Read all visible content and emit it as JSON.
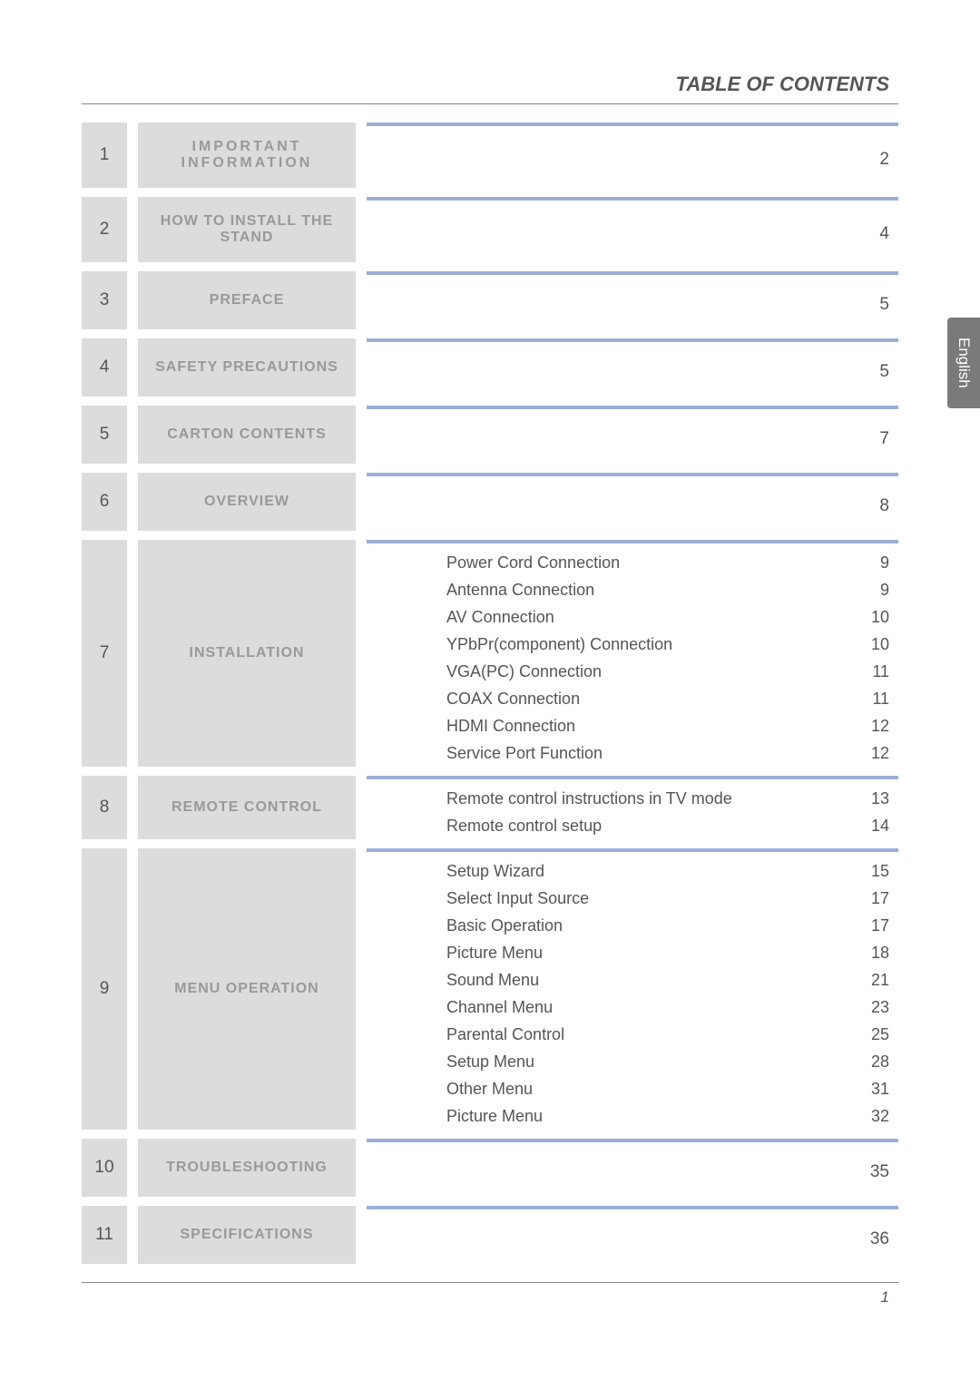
{
  "header": {
    "title": "TABLE OF CONTENTS",
    "language_tab": "English",
    "page_number": "1"
  },
  "colors": {
    "box_bg": "#dcdcdc",
    "title_text": "#999999",
    "body_text": "#555555",
    "accent_line": "#9caed6",
    "tab_bg": "#7a7a7a",
    "tab_text": "#ffffff"
  },
  "sections": [
    {
      "num": "1",
      "title": "IMPORTANT INFORMATION",
      "letter_spacing": true,
      "page": "2",
      "subs": []
    },
    {
      "num": "2",
      "title": "HOW TO INSTALL THE STAND",
      "page": "4",
      "subs": []
    },
    {
      "num": "3",
      "title": "PREFACE",
      "page": "5",
      "subs": []
    },
    {
      "num": "4",
      "title": "SAFETY PRECAUTIONS",
      "page": "5",
      "subs": []
    },
    {
      "num": "5",
      "title": "CARTON CONTENTS",
      "page": "7",
      "subs": []
    },
    {
      "num": "6",
      "title": "OVERVIEW",
      "page": "8",
      "subs": []
    },
    {
      "num": "7",
      "title": "INSTALLATION",
      "page": null,
      "subs": [
        {
          "label": "Power Cord Connection",
          "page": "9"
        },
        {
          "label": "Antenna Connection",
          "page": "9"
        },
        {
          "label": "AV  Connection",
          "page": "10"
        },
        {
          "label": "YPbPr(component) Connection",
          "page": "10"
        },
        {
          "label": "VGA(PC) Connection",
          "page": "11"
        },
        {
          "label": "COAX Connection",
          "page": "11"
        },
        {
          "label": "HDMI Connection",
          "page": "12"
        },
        {
          "label": "Service Port Function",
          "page": "12"
        }
      ]
    },
    {
      "num": "8",
      "title": "REMOTE CONTROL",
      "page": null,
      "subs": [
        {
          "label": "Remote control instructions in TV mode",
          "page": "13"
        },
        {
          "label": "Remote control setup",
          "page": "14"
        }
      ]
    },
    {
      "num": "9",
      "title": "MENU OPERATION",
      "page": null,
      "subs": [
        {
          "label": "Setup  Wizard",
          "page": "15"
        },
        {
          "label": "Select Input Source",
          "page": "17"
        },
        {
          "label": "Basic Operation",
          "page": "17"
        },
        {
          "label": "Picture Menu",
          "page": "18"
        },
        {
          "label": "Sound Menu",
          "page": "21"
        },
        {
          "label": "Channel Menu",
          "page": "23"
        },
        {
          "label": "Parental Control",
          "page": "25"
        },
        {
          "label": "Setup Menu",
          "page": "28"
        },
        {
          "label": "Other Menu",
          "page": "31"
        },
        {
          "label": "Picture Menu",
          "page": "32"
        }
      ]
    },
    {
      "num": "10",
      "title": "TROUBLESHOOTING",
      "page": "35",
      "subs": []
    },
    {
      "num": "11",
      "title": "SPECIFICATIONS",
      "page": "36",
      "subs": []
    }
  ]
}
